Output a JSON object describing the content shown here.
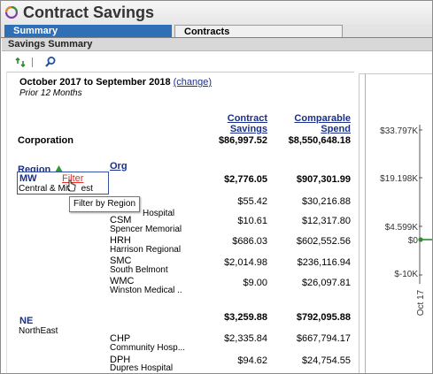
{
  "app": {
    "title": "Contract Savings"
  },
  "tabs": [
    {
      "label": "Summary"
    },
    {
      "label": "Contracts"
    }
  ],
  "panel": {
    "title": "Savings Summary"
  },
  "period": {
    "range": "October 2017 to September 2018",
    "change_label": "(change)",
    "subtitle": "Prior 12 Months"
  },
  "columns": {
    "savings": [
      "Contract",
      "Savings"
    ],
    "spend": [
      "Comparable",
      "Spend"
    ]
  },
  "corporation": {
    "label": "Corporation",
    "savings": "$86,997.52",
    "spend": "$8,550,648.18"
  },
  "grouping": {
    "region_label": "Region",
    "org_label": "Org"
  },
  "regions": [
    {
      "code": "MW",
      "name_part1": "Central & Mid",
      "name_part2": "est",
      "filter_label": "Filter",
      "savings": "$2,776.05",
      "spend": "$907,301.99",
      "orgs": [
        {
          "code": "",
          "name": "Hospital",
          "savings": "$55.42",
          "spend": "$30,216.88"
        },
        {
          "code": "CSM",
          "name": "Spencer Memorial",
          "savings": "$10.61",
          "spend": "$12,317.80"
        },
        {
          "code": "HRH",
          "name": "Harrison Regional",
          "savings": "$686.03",
          "spend": "$602,552.56"
        },
        {
          "code": "SMC",
          "name": "South Belmont",
          "savings": "$2,014.98",
          "spend": "$236,116.94"
        },
        {
          "code": "WMC",
          "name": "Winston Medical ..",
          "savings": "$9.00",
          "spend": "$26,097.81"
        }
      ]
    },
    {
      "code": "NE",
      "name": "NorthEast",
      "savings": "$3,259.88",
      "spend": "$792,095.88",
      "orgs": [
        {
          "code": "CHP",
          "name": "Community Hosp...",
          "savings": "$2,335.84",
          "spend": "$667,794.17"
        },
        {
          "code": "DPH",
          "name": "Dupres Hospital",
          "savings": "$94.62",
          "spend": "$24,754.55"
        }
      ]
    }
  ],
  "tooltip": {
    "text": "Filter by Region"
  },
  "chart_data": {
    "type": "line",
    "y_tick_labels": [
      "$33.797K",
      "$19.198K",
      "$4.599K",
      "$0",
      "$-10K"
    ],
    "x_tick_labels": [
      "Oct 17"
    ],
    "series": [
      {
        "color": "#2e8b2e"
      }
    ]
  },
  "icons": {
    "refresh": "refresh-icon",
    "search": "search-icon",
    "sort": "sort-ascending-icon",
    "logo": "app-logo-icon"
  }
}
